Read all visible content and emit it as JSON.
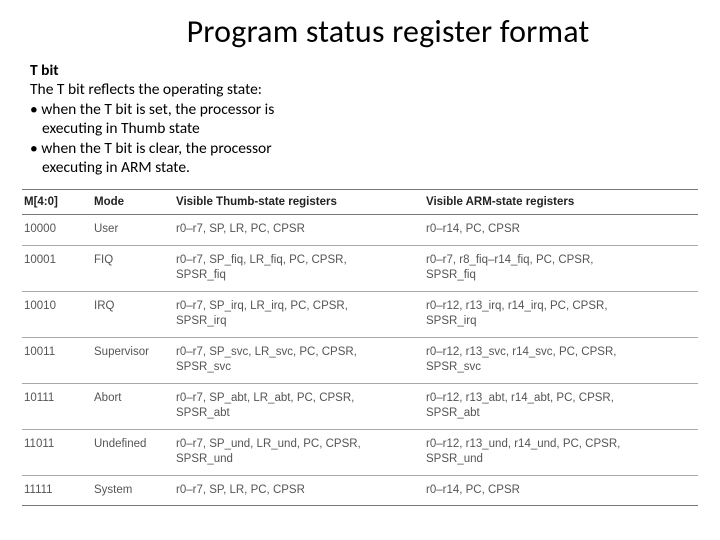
{
  "title": "Program status register format",
  "body": {
    "heading": "T bit",
    "intro": "The T bit reflects the operating state:",
    "bullets": [
      {
        "line": "• when the T bit is set, the processor is",
        "cont": "executing in Thumb state"
      },
      {
        "line": "• when the T bit is clear, the processor",
        "cont": "executing in ARM state."
      }
    ]
  },
  "table": {
    "columns": [
      "M[4:0]",
      "Mode",
      "Visible Thumb-state registers",
      "Visible ARM-state registers"
    ],
    "colWidths": [
      "70px",
      "82px",
      "250px",
      "auto"
    ],
    "rows": [
      {
        "m": "10000",
        "mode": "User",
        "thumb": "r0–r7, SP, LR, PC, CPSR",
        "arm": "r0–r14, PC, CPSR"
      },
      {
        "m": "10001",
        "mode": "FIQ",
        "thumb": "r0–r7, SP_fiq, LR_fiq, PC, CPSR,\nSPSR_fiq",
        "arm": "r0–r7, r8_fiq–r14_fiq, PC, CPSR,\nSPSR_fiq"
      },
      {
        "m": "10010",
        "mode": "IRQ",
        "thumb": "r0–r7, SP_irq, LR_irq, PC, CPSR,\nSPSR_irq",
        "arm": "r0–r12, r13_irq, r14_irq, PC, CPSR,\nSPSR_irq"
      },
      {
        "m": "10011",
        "mode": "Supervisor",
        "thumb": "r0–r7, SP_svc, LR_svc, PC, CPSR,\nSPSR_svc",
        "arm": "r0–r12, r13_svc, r14_svc, PC, CPSR,\nSPSR_svc"
      },
      {
        "m": "10111",
        "mode": "Abort",
        "thumb": "r0–r7, SP_abt, LR_abt, PC, CPSR,\nSPSR_abt",
        "arm": "r0–r12, r13_abt, r14_abt, PC, CPSR,\nSPSR_abt"
      },
      {
        "m": "11011",
        "mode": "Undefined",
        "thumb": "r0–r7, SP_und, LR_und, PC, CPSR,\nSPSR_und",
        "arm": "r0–r12, r13_und, r14_und, PC, CPSR,\nSPSR_und"
      },
      {
        "m": "11111",
        "mode": "System",
        "thumb": "r0–r7, SP, LR, PC, CPSR",
        "arm": "r0–r14, PC, CPSR"
      }
    ],
    "headerBorderColor": "#777777",
    "rowBorderColor": "#aaaaaa",
    "headerTextColor": "#222222",
    "cellTextColor": "#555555",
    "fontSize": 11.5
  },
  "style": {
    "titleFontSize": 32,
    "bodyFontSize": 15.5,
    "background": "#ffffff",
    "textColor": "#000000"
  }
}
